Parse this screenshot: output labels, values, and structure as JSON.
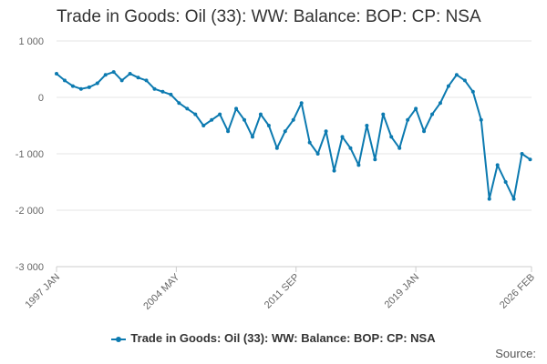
{
  "chart_data": {
    "type": "line",
    "title": "Trade in Goods: Oil (33): WW: Balance: BOP: CP: NSA",
    "xlabel": "",
    "ylabel": "",
    "ylim": [
      -3000,
      1000
    ],
    "yticks": [
      1000,
      0,
      -1000,
      -2000,
      -3000
    ],
    "ytick_labels": [
      "1 000",
      "0",
      "-1 000",
      "-2 000",
      "-3 000"
    ],
    "xlim": [
      1997.0,
      2026.083
    ],
    "xticks": [
      1997.0,
      2004.333,
      2011.667,
      2019.0,
      2026.083
    ],
    "xtick_labels": [
      "1997 JAN",
      "2004 MAY",
      "2011 SEP",
      "2019 JAN",
      "2026 FEB"
    ],
    "grid": true,
    "legend_position": "bottom",
    "color": "#0c7ab0",
    "series": [
      {
        "name": "Trade in Goods: Oil (33): WW: Balance: BOP: CP: NSA",
        "x": [
          1997.0,
          1997.5,
          1998.0,
          1998.5,
          1999.0,
          1999.5,
          2000.0,
          2000.5,
          2001.0,
          2001.5,
          2002.0,
          2002.5,
          2003.0,
          2003.5,
          2004.0,
          2004.5,
          2005.0,
          2005.5,
          2006.0,
          2006.5,
          2007.0,
          2007.5,
          2008.0,
          2008.5,
          2009.0,
          2009.5,
          2010.0,
          2010.5,
          2011.0,
          2011.5,
          2012.0,
          2012.5,
          2013.0,
          2013.5,
          2014.0,
          2014.5,
          2015.0,
          2015.5,
          2016.0,
          2016.5,
          2017.0,
          2017.5,
          2018.0,
          2018.5,
          2019.0,
          2019.5,
          2020.0,
          2020.5,
          2021.0,
          2021.5,
          2022.0,
          2022.5,
          2023.0,
          2023.5,
          2024.0,
          2024.5,
          2025.0,
          2025.5,
          2026.0
        ],
        "values": [
          420,
          300,
          200,
          150,
          180,
          250,
          400,
          450,
          300,
          420,
          350,
          300,
          150,
          100,
          50,
          -100,
          -200,
          -300,
          -500,
          -400,
          -300,
          -600,
          -200,
          -400,
          -700,
          -300,
          -500,
          -900,
          -600,
          -400,
          -100,
          -800,
          -1000,
          -600,
          -1300,
          -700,
          -900,
          -1200,
          -500,
          -1100,
          -300,
          -700,
          -900,
          -400,
          -200,
          -600,
          -300,
          -100,
          200,
          400,
          300,
          100,
          -400,
          -1800,
          -1200,
          -1500,
          -1800,
          -1000,
          -1100
        ]
      }
    ]
  },
  "legend": {
    "label": "Trade in Goods: Oil (33): WW: Balance: BOP: CP: NSA"
  },
  "footer": {
    "source_label": "Source:"
  }
}
